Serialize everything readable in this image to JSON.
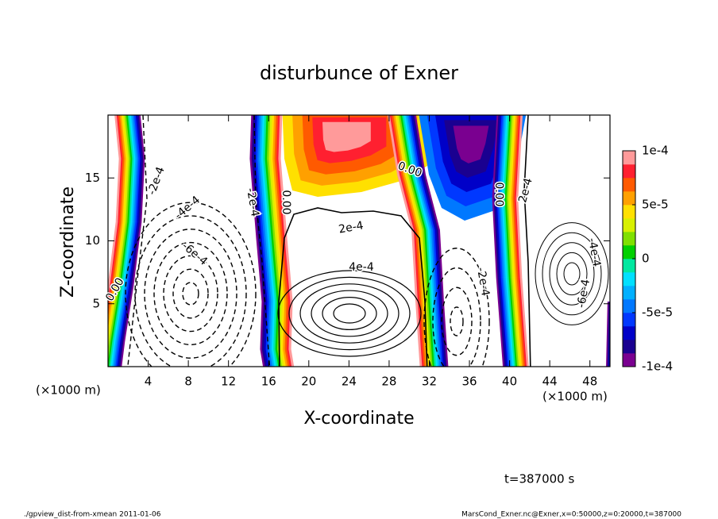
{
  "chart_data": {
    "type": "contour",
    "title": "disturbunce of Exner",
    "x_label": "X-coordinate",
    "y_label": "Z-coordinate",
    "x_unit": "(×1000 m)",
    "y_unit": "(×1000 m)",
    "xlim": [
      0,
      50
    ],
    "ylim": [
      0,
      20
    ],
    "xticks": [
      4,
      8,
      12,
      16,
      20,
      24,
      28,
      32,
      36,
      40,
      44,
      48
    ],
    "yticks": [
      5,
      10,
      15
    ],
    "colorbar": {
      "clim": [
        -0.0001,
        0.0001
      ],
      "ticks": [
        {
          "value": 0.0001,
          "label": "1e-4"
        },
        {
          "value": 5e-05,
          "label": "5e-5"
        },
        0,
        {
          "value": -5e-05,
          "label": "-5e-5"
        },
        {
          "value": -0.0001,
          "label": "-1e-4"
        }
      ],
      "colors": [
        "#7a0090",
        "#1a0090",
        "#0000c8",
        "#0038ff",
        "#0078ff",
        "#00b0ff",
        "#00e0ff",
        "#00e8a0",
        "#00d000",
        "#80e000",
        "#d8f000",
        "#ffe000",
        "#ffa000",
        "#ff5a00",
        "#ff2030",
        "#ff9a9a"
      ]
    },
    "contour_labels": [
      "-2e-4",
      "-4e-4",
      "-6e-4",
      "-2e-4",
      "0.00",
      "2e-4",
      "4e-4",
      "0.00",
      "0.00",
      "2e-4",
      "-2e-4",
      "-6e-4",
      "-4e-4",
      "0.00"
    ],
    "time_label": "t=387000 s"
  },
  "footer": {
    "left": "./gpview_dist-from-xmean  2011-01-06",
    "right": "MarsCond_Exner.nc@Exner,x=0:50000,z=0:20000,t=387000"
  }
}
